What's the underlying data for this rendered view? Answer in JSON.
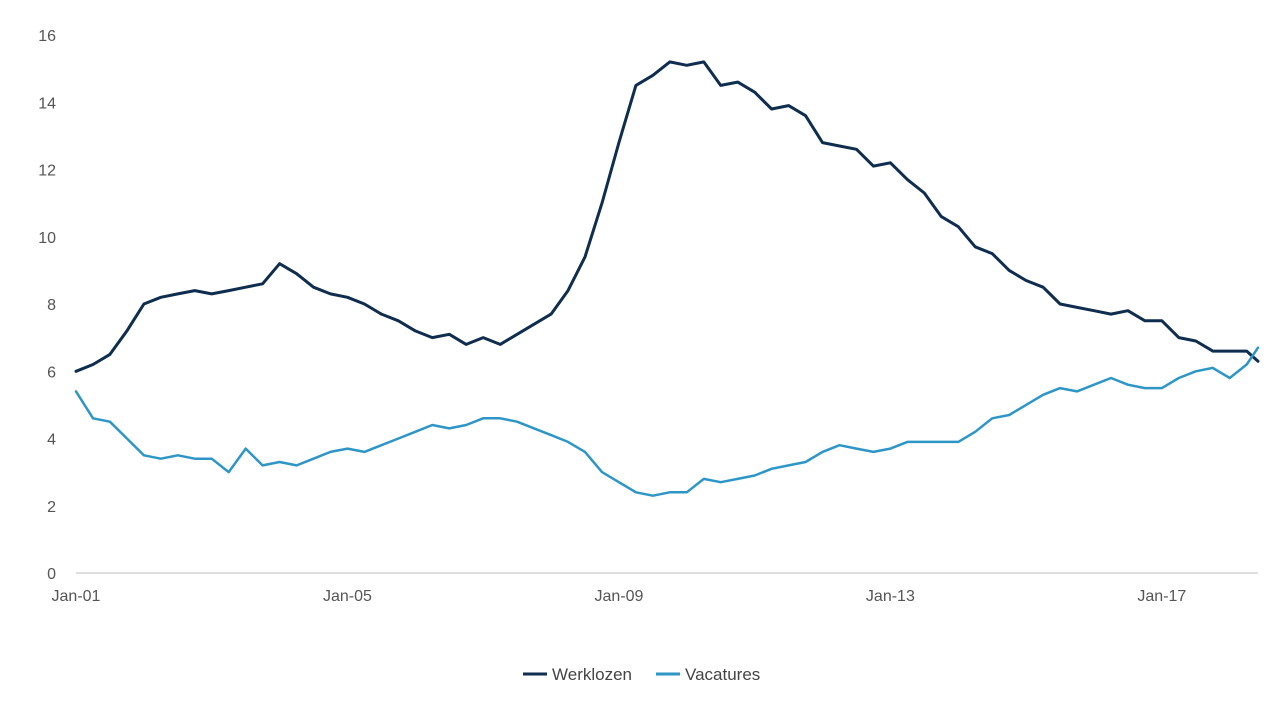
{
  "chart_data": {
    "type": "line",
    "title": "",
    "xlabel": "",
    "ylabel": "",
    "x_start": "2001-01",
    "x_end": "2018-06",
    "x_frequency": "monthly",
    "ylim": [
      0,
      16
    ],
    "y_ticks": [
      0,
      2,
      4,
      6,
      8,
      10,
      12,
      14,
      16
    ],
    "x_ticks": [
      {
        "label": "Jan-01",
        "date": "2001-01"
      },
      {
        "label": "Jan-05",
        "date": "2005-01"
      },
      {
        "label": "Jan-09",
        "date": "2009-01"
      },
      {
        "label": "Jan-13",
        "date": "2013-01"
      },
      {
        "label": "Jan-17",
        "date": "2017-01"
      }
    ],
    "grid": false,
    "legend_position": "bottom-center",
    "series": [
      {
        "name": "Werklozen",
        "color": "#0f2d4f",
        "points": [
          [
            "2001-01",
            6.0
          ],
          [
            "2001-04",
            6.2
          ],
          [
            "2001-07",
            6.5
          ],
          [
            "2001-10",
            7.2
          ],
          [
            "2002-01",
            8.0
          ],
          [
            "2002-04",
            8.2
          ],
          [
            "2002-07",
            8.3
          ],
          [
            "2002-10",
            8.4
          ],
          [
            "2003-01",
            8.3
          ],
          [
            "2003-04",
            8.4
          ],
          [
            "2003-07",
            8.5
          ],
          [
            "2003-10",
            8.6
          ],
          [
            "2004-01",
            9.2
          ],
          [
            "2004-04",
            8.9
          ],
          [
            "2004-07",
            8.5
          ],
          [
            "2004-10",
            8.3
          ],
          [
            "2005-01",
            8.2
          ],
          [
            "2005-04",
            8.0
          ],
          [
            "2005-07",
            7.7
          ],
          [
            "2005-10",
            7.5
          ],
          [
            "2006-01",
            7.2
          ],
          [
            "2006-04",
            7.0
          ],
          [
            "2006-07",
            7.1
          ],
          [
            "2006-10",
            6.8
          ],
          [
            "2007-01",
            7.0
          ],
          [
            "2007-04",
            6.8
          ],
          [
            "2007-07",
            7.1
          ],
          [
            "2007-10",
            7.4
          ],
          [
            "2008-01",
            7.7
          ],
          [
            "2008-04",
            8.4
          ],
          [
            "2008-07",
            9.4
          ],
          [
            "2008-10",
            11.0
          ],
          [
            "2009-01",
            12.8
          ],
          [
            "2009-04",
            14.5
          ],
          [
            "2009-07",
            14.8
          ],
          [
            "2009-10",
            15.2
          ],
          [
            "2010-01",
            15.1
          ],
          [
            "2010-04",
            15.2
          ],
          [
            "2010-07",
            14.5
          ],
          [
            "2010-10",
            14.6
          ],
          [
            "2011-01",
            14.3
          ],
          [
            "2011-04",
            13.8
          ],
          [
            "2011-07",
            13.9
          ],
          [
            "2011-10",
            13.6
          ],
          [
            "2012-01",
            12.8
          ],
          [
            "2012-04",
            12.7
          ],
          [
            "2012-07",
            12.6
          ],
          [
            "2012-10",
            12.1
          ],
          [
            "2013-01",
            12.2
          ],
          [
            "2013-04",
            11.7
          ],
          [
            "2013-07",
            11.3
          ],
          [
            "2013-10",
            10.6
          ],
          [
            "2014-01",
            10.3
          ],
          [
            "2014-04",
            9.7
          ],
          [
            "2014-07",
            9.5
          ],
          [
            "2014-10",
            9.0
          ],
          [
            "2015-01",
            8.7
          ],
          [
            "2015-04",
            8.5
          ],
          [
            "2015-07",
            8.0
          ],
          [
            "2015-10",
            7.9
          ],
          [
            "2016-01",
            7.8
          ],
          [
            "2016-04",
            7.7
          ],
          [
            "2016-07",
            7.8
          ],
          [
            "2016-10",
            7.5
          ],
          [
            "2017-01",
            7.5
          ],
          [
            "2017-04",
            7.0
          ],
          [
            "2017-07",
            6.9
          ],
          [
            "2017-10",
            6.6
          ],
          [
            "2018-01",
            6.6
          ],
          [
            "2018-04",
            6.6
          ],
          [
            "2018-06",
            6.3
          ]
        ]
      },
      {
        "name": "Vacatures",
        "color": "#2e96c7",
        "points": [
          [
            "2001-01",
            5.4
          ],
          [
            "2001-04",
            4.6
          ],
          [
            "2001-07",
            4.5
          ],
          [
            "2001-10",
            4.0
          ],
          [
            "2002-01",
            3.5
          ],
          [
            "2002-04",
            3.4
          ],
          [
            "2002-07",
            3.5
          ],
          [
            "2002-10",
            3.4
          ],
          [
            "2003-01",
            3.4
          ],
          [
            "2003-04",
            3.0
          ],
          [
            "2003-07",
            3.7
          ],
          [
            "2003-10",
            3.2
          ],
          [
            "2004-01",
            3.3
          ],
          [
            "2004-04",
            3.2
          ],
          [
            "2004-07",
            3.4
          ],
          [
            "2004-10",
            3.6
          ],
          [
            "2005-01",
            3.7
          ],
          [
            "2005-04",
            3.6
          ],
          [
            "2005-07",
            3.8
          ],
          [
            "2005-10",
            4.0
          ],
          [
            "2006-01",
            4.2
          ],
          [
            "2006-04",
            4.4
          ],
          [
            "2006-07",
            4.3
          ],
          [
            "2006-10",
            4.4
          ],
          [
            "2007-01",
            4.6
          ],
          [
            "2007-04",
            4.6
          ],
          [
            "2007-07",
            4.5
          ],
          [
            "2007-10",
            4.3
          ],
          [
            "2008-01",
            4.1
          ],
          [
            "2008-04",
            3.9
          ],
          [
            "2008-07",
            3.6
          ],
          [
            "2008-10",
            3.0
          ],
          [
            "2009-01",
            2.7
          ],
          [
            "2009-04",
            2.4
          ],
          [
            "2009-07",
            2.3
          ],
          [
            "2009-10",
            2.4
          ],
          [
            "2010-01",
            2.4
          ],
          [
            "2010-04",
            2.8
          ],
          [
            "2010-07",
            2.7
          ],
          [
            "2010-10",
            2.8
          ],
          [
            "2011-01",
            2.9
          ],
          [
            "2011-04",
            3.1
          ],
          [
            "2011-07",
            3.2
          ],
          [
            "2011-10",
            3.3
          ],
          [
            "2012-01",
            3.6
          ],
          [
            "2012-04",
            3.8
          ],
          [
            "2012-07",
            3.7
          ],
          [
            "2012-10",
            3.6
          ],
          [
            "2013-01",
            3.7
          ],
          [
            "2013-04",
            3.9
          ],
          [
            "2013-07",
            3.9
          ],
          [
            "2013-10",
            3.9
          ],
          [
            "2014-01",
            3.9
          ],
          [
            "2014-04",
            4.2
          ],
          [
            "2014-07",
            4.6
          ],
          [
            "2014-10",
            4.7
          ],
          [
            "2015-01",
            5.0
          ],
          [
            "2015-04",
            5.3
          ],
          [
            "2015-07",
            5.5
          ],
          [
            "2015-10",
            5.4
          ],
          [
            "2016-01",
            5.6
          ],
          [
            "2016-04",
            5.8
          ],
          [
            "2016-07",
            5.6
          ],
          [
            "2016-10",
            5.5
          ],
          [
            "2017-01",
            5.5
          ],
          [
            "2017-04",
            5.8
          ],
          [
            "2017-07",
            6.0
          ],
          [
            "2017-10",
            6.1
          ],
          [
            "2018-01",
            5.8
          ],
          [
            "2018-04",
            6.2
          ],
          [
            "2018-06",
            6.7
          ]
        ]
      }
    ]
  }
}
